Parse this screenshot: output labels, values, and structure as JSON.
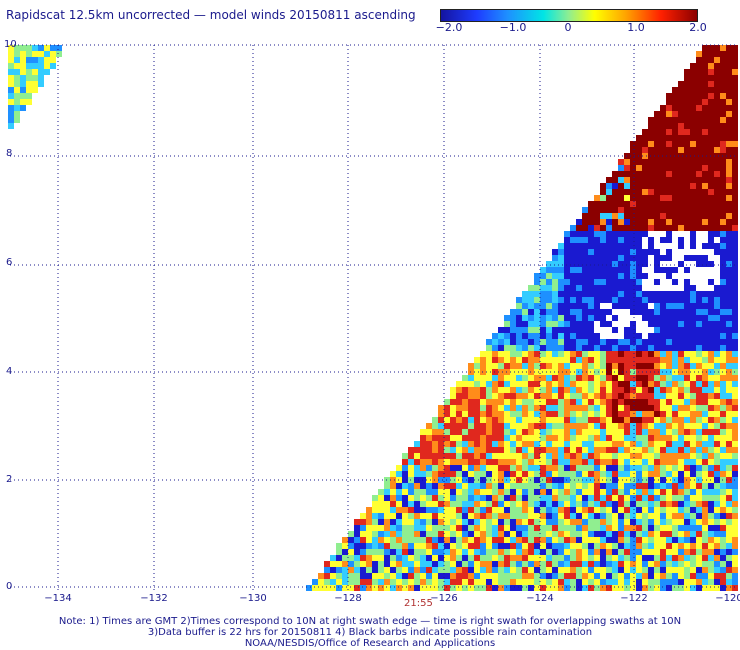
{
  "title": "Rapidscat 12.5km uncorrected — model winds 20150811 ascending",
  "colorbar": {
    "ticks": [
      "−2.0",
      "−1.0",
      "0",
      "1.0",
      "2.0"
    ],
    "range": [
      -2.0,
      2.0
    ]
  },
  "axes": {
    "lat_labels": [
      "10",
      "8",
      "6",
      "4",
      "2",
      "0"
    ],
    "lon_labels": [
      "−134",
      "−132",
      "−130",
      "−128",
      "−126",
      "−124",
      "−122",
      "−120"
    ]
  },
  "time_label": "21:55",
  "notes": {
    "line1": "Note: 1) Times are GMT 2)Times correspond to 10N at right swath edge — time is right swath for overlapping swaths at 10N",
    "line2": "3)Data buffer is 22 hrs for 20150811 4) Black barbs indicate possible rain contamination",
    "line3": "NOAA/NESDIS/Office of Research and Applications"
  },
  "colors": {
    "dark_red": "#8b0000",
    "red": "#e0281e",
    "orange": "#ff8c1a",
    "yellow": "#ffff33",
    "green": "#90ee90",
    "cyan": "#33ccff",
    "blue": "#1e90ff",
    "dark_blue": "#1a1ad0"
  }
}
